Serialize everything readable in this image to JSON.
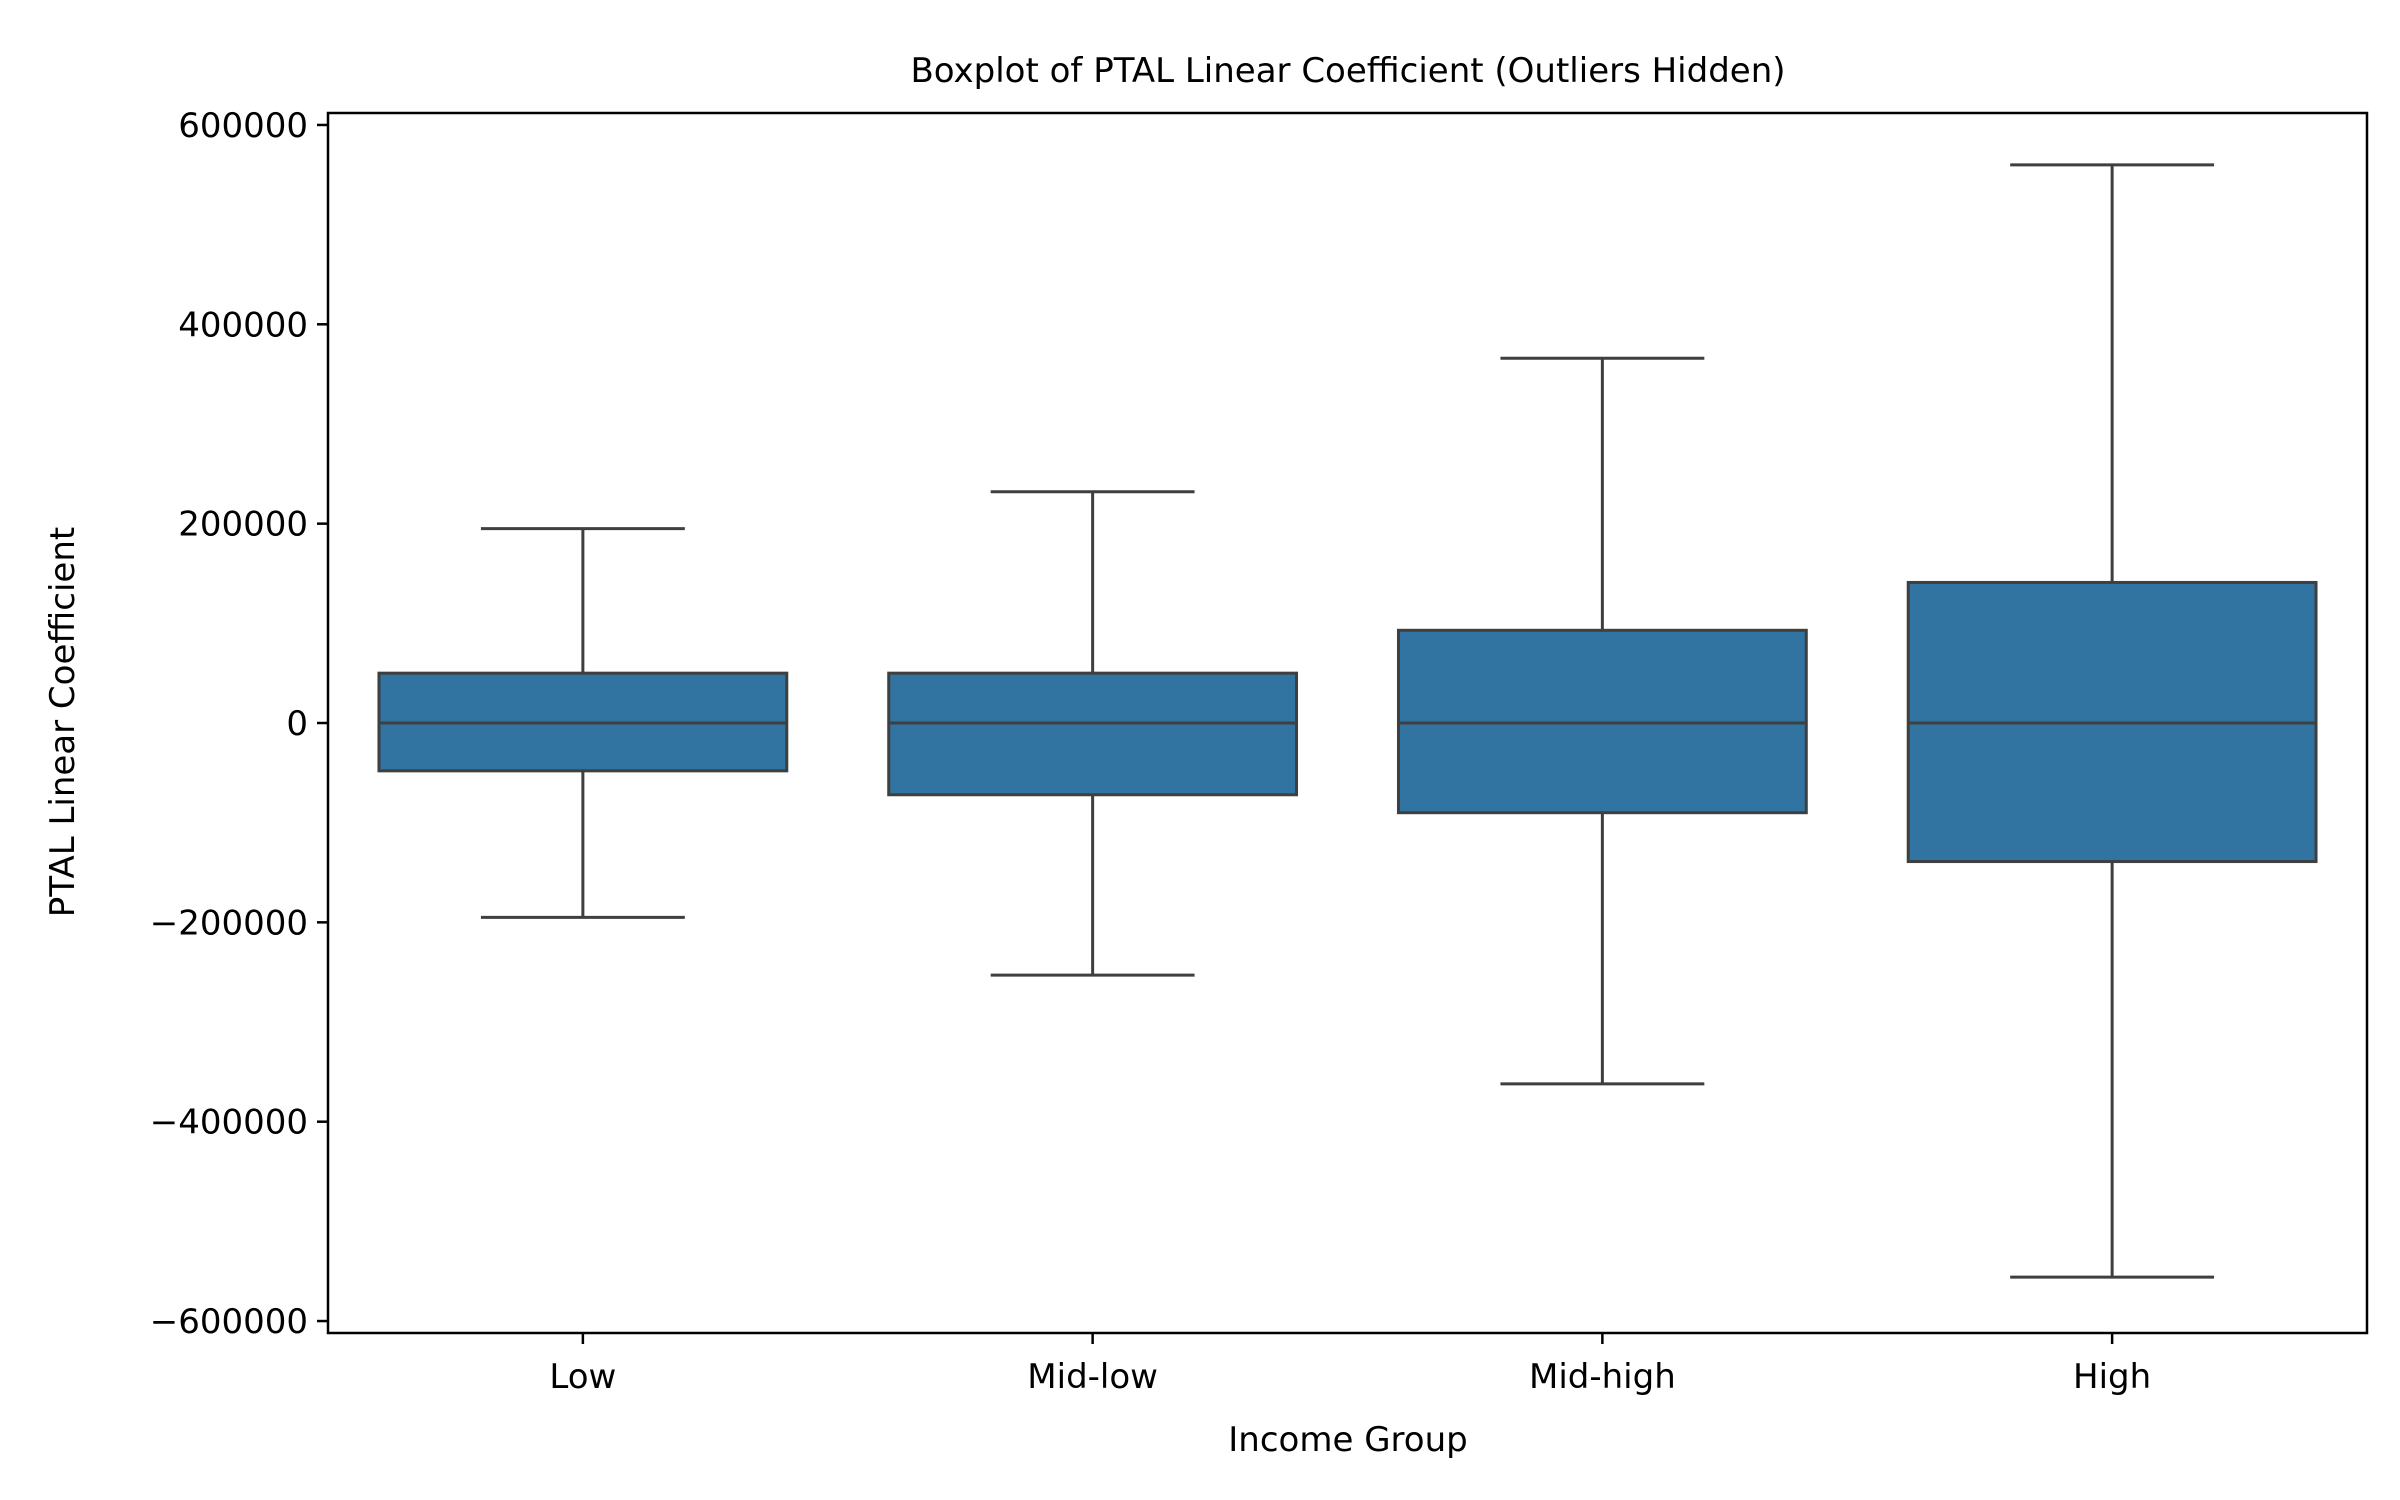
{
  "chart_data": {
    "type": "box",
    "title": "Boxplot of PTAL Linear Coefficient (Outliers Hidden)",
    "xlabel": "Income Group",
    "ylabel": "PTAL Linear Coefficient",
    "categories": [
      "Low",
      "Mid-low",
      "Mid-high",
      "High"
    ],
    "boxes": [
      {
        "category": "Low",
        "whisker_low": -195000,
        "q1": -48000,
        "median": 0,
        "q3": 50000,
        "whisker_high": 195000
      },
      {
        "category": "Mid-low",
        "whisker_low": -253000,
        "q1": -72000,
        "median": 0,
        "q3": 50000,
        "whisker_high": 232000
      },
      {
        "category": "Mid-high",
        "whisker_low": -362000,
        "q1": -90000,
        "median": 0,
        "q3": 93000,
        "whisker_high": 366000
      },
      {
        "category": "High",
        "whisker_low": -556000,
        "q1": -139000,
        "median": 0,
        "q3": 141000,
        "whisker_high": 560000
      }
    ],
    "ylim": [
      -612000,
      612000
    ],
    "yticks": [
      600000,
      400000,
      200000,
      0,
      -200000,
      -400000,
      -600000
    ],
    "ytick_labels": [
      "600000",
      "400000",
      "200000",
      "0",
      "−200000",
      "−400000",
      "−600000"
    ],
    "grid": false,
    "outliers_shown": false,
    "colors": {
      "box_fill": "#3274a1",
      "box_edge": "#3f3f3f",
      "axis": "#000000"
    }
  }
}
